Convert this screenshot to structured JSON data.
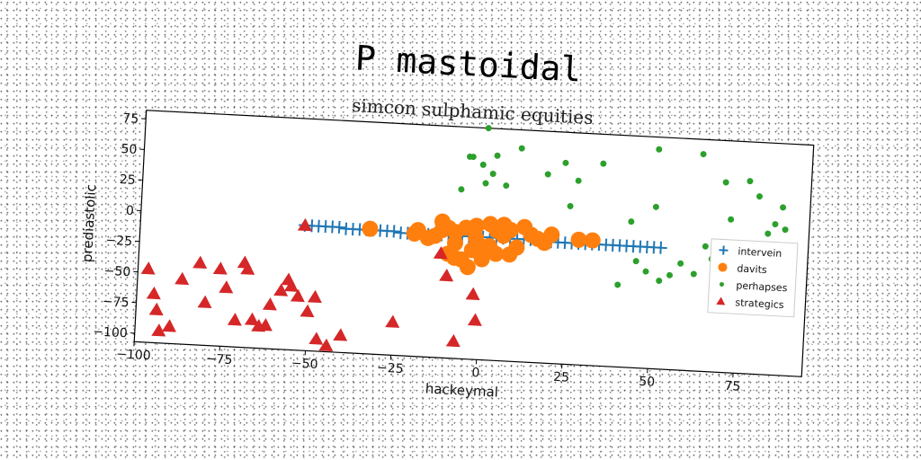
{
  "chart_data": {
    "type": "scatter",
    "title": "P mastoidal",
    "subtitle": "simcon sulphamic equities",
    "xlabel": "hackeymal",
    "ylabel": "prediastolic",
    "xlim": [
      -100,
      95
    ],
    "ylim": [
      -107,
      82
    ],
    "xticks": [
      -100,
      -75,
      -50,
      -25,
      0,
      25,
      50,
      75
    ],
    "yticks": [
      -100,
      -75,
      -50,
      -25,
      0,
      25,
      50,
      75
    ],
    "grid": false,
    "legend_position": "right",
    "series": [
      {
        "name": "intervein",
        "marker": "plus",
        "color": "#1f77b4",
        "points": [
          [
            -52,
            -5
          ],
          [
            -50,
            -5
          ],
          [
            -48,
            -5
          ],
          [
            -46,
            -5
          ],
          [
            -44,
            -5
          ],
          [
            -42,
            -5
          ],
          [
            -40,
            -6
          ],
          [
            -38,
            -6
          ],
          [
            -36,
            -6
          ],
          [
            -34,
            -6
          ],
          [
            -32,
            -6
          ],
          [
            -30,
            -6
          ],
          [
            -28,
            -6
          ],
          [
            -26,
            -6
          ],
          [
            -24,
            -7
          ],
          [
            -22,
            -7
          ],
          [
            -20,
            -7
          ],
          [
            -18,
            -7
          ],
          [
            -16,
            -7
          ],
          [
            -14,
            -7
          ],
          [
            -12,
            -7
          ],
          [
            -10,
            -7
          ],
          [
            -8,
            -7
          ],
          [
            -6,
            -7
          ],
          [
            -4,
            -7
          ],
          [
            -2,
            -7
          ],
          [
            0,
            -7
          ],
          [
            2,
            -7
          ],
          [
            4,
            -7
          ],
          [
            6,
            -7
          ],
          [
            8,
            -7
          ],
          [
            10,
            -7
          ],
          [
            12,
            -7
          ],
          [
            14,
            -7
          ],
          [
            16,
            -7
          ],
          [
            18,
            -7
          ],
          [
            20,
            -8
          ],
          [
            22,
            -8
          ],
          [
            24,
            -8
          ],
          [
            26,
            -8
          ],
          [
            28,
            -8
          ],
          [
            30,
            -8
          ],
          [
            32,
            -8
          ],
          [
            34,
            -8
          ],
          [
            36,
            -8
          ],
          [
            38,
            -8
          ],
          [
            40,
            -8
          ],
          [
            42,
            -8
          ],
          [
            44,
            -8
          ],
          [
            46,
            -8
          ],
          [
            48,
            -8
          ],
          [
            50,
            -8
          ],
          [
            52,
            -8
          ]
        ]
      },
      {
        "name": "davits",
        "marker": "circle",
        "color": "#ff7f0e",
        "points": [
          [
            -33,
            -5
          ],
          [
            -20,
            -7
          ],
          [
            -19,
            -4
          ],
          [
            -12,
            -3
          ],
          [
            -12,
            4
          ],
          [
            -10,
            -1
          ],
          [
            -8,
            -4
          ],
          [
            -8,
            -13
          ],
          [
            -5,
            0
          ],
          [
            -3,
            -18
          ],
          [
            -2,
            -8
          ],
          [
            0,
            -25
          ],
          [
            2,
            -14
          ],
          [
            4,
            -1
          ],
          [
            6,
            -5
          ],
          [
            8,
            0
          ],
          [
            10,
            -14
          ],
          [
            12,
            3
          ],
          [
            14,
            -3
          ],
          [
            16,
            -6
          ],
          [
            18,
            -9
          ],
          [
            20,
            -2
          ],
          [
            28,
            -5
          ],
          [
            32,
            -5
          ],
          [
            -10,
            -22
          ],
          [
            -6,
            -26
          ],
          [
            -4,
            -32
          ],
          [
            -8,
            -25
          ],
          [
            0,
            -15
          ],
          [
            4,
            -20
          ],
          [
            8,
            -20
          ],
          [
            -2,
            2
          ],
          [
            2,
            4
          ],
          [
            6,
            4
          ],
          [
            -14,
            -8
          ],
          [
            -16,
            -10
          ]
        ]
      },
      {
        "name": "perhapses",
        "marker": "dot",
        "color": "#2ca02c",
        "points": [
          [
            -7,
            31
          ],
          [
            -5,
            58
          ],
          [
            -4,
            58
          ],
          [
            -1,
            52
          ],
          [
            0,
            37
          ],
          [
            0,
            82
          ],
          [
            2,
            45
          ],
          [
            3,
            60
          ],
          [
            6,
            36
          ],
          [
            10,
            67
          ],
          [
            18,
            47
          ],
          [
            23,
            57
          ],
          [
            25,
            22
          ],
          [
            27,
            43
          ],
          [
            34,
            58
          ],
          [
            43,
            12
          ],
          [
            45,
            -20
          ],
          [
            50,
            72
          ],
          [
            50,
            25
          ],
          [
            55,
            -30
          ],
          [
            58,
            -20
          ],
          [
            62,
            -28
          ],
          [
            63,
            70
          ],
          [
            65,
            -5
          ],
          [
            67,
            -15
          ],
          [
            70,
            48
          ],
          [
            72,
            18
          ],
          [
            77,
            50
          ],
          [
            80,
            38
          ],
          [
            83,
            8
          ],
          [
            85,
            16
          ],
          [
            87,
            30
          ],
          [
            88,
            12
          ],
          [
            52,
            -35
          ],
          [
            40,
            -40
          ],
          [
            48,
            -28
          ]
        ]
      },
      {
        "name": "strategics",
        "marker": "triangle",
        "color": "#d62728",
        "points": [
          [
            -52,
            -5
          ],
          [
            -97,
            -47
          ],
          [
            -95,
            -67
          ],
          [
            -94,
            -80
          ],
          [
            -93,
            -97
          ],
          [
            -90,
            -93
          ],
          [
            -87,
            -54
          ],
          [
            -82,
            -40
          ],
          [
            -80,
            -72
          ],
          [
            -76,
            -44
          ],
          [
            -74,
            -59
          ],
          [
            -71,
            -85
          ],
          [
            -69,
            -38
          ],
          [
            -68,
            -43
          ],
          [
            -66,
            -84
          ],
          [
            -64,
            -89
          ],
          [
            -62,
            -88
          ],
          [
            -61,
            -71
          ],
          [
            -58,
            -59
          ],
          [
            -56,
            -50
          ],
          [
            -55,
            -55
          ],
          [
            -53,
            -63
          ],
          [
            -50,
            -75
          ],
          [
            -48,
            -63
          ],
          [
            -47,
            -97
          ],
          [
            -44,
            -102
          ],
          [
            -40,
            -93
          ],
          [
            -25,
            -80
          ],
          [
            -12,
            -22
          ],
          [
            -10,
            -40
          ],
          [
            -7,
            -93
          ],
          [
            -2,
            -54
          ],
          [
            -1,
            -75
          ]
        ]
      }
    ]
  }
}
